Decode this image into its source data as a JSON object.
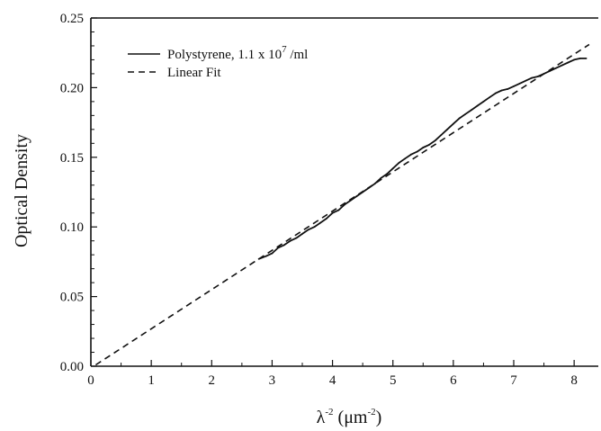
{
  "chart_data": {
    "type": "line",
    "xlabel": {
      "main": "λ",
      "sup1": "-2",
      "unit_open": "(μm",
      "sup2": "-2",
      "unit_close": ")"
    },
    "ylabel": "Optical Density",
    "xlim": [
      0,
      8.4
    ],
    "ylim": [
      0,
      0.25
    ],
    "x_ticks": [
      "0",
      "1",
      "2",
      "3",
      "4",
      "5",
      "6",
      "7",
      "8"
    ],
    "y_ticks": [
      "0.00",
      "0.05",
      "0.10",
      "0.15",
      "0.20",
      "0.25"
    ],
    "grid": false,
    "legend_position": "top-left",
    "series": [
      {
        "name": "Polystyrene, 1.1 x 10",
        "name_sup": "7",
        "name_suffix": " /ml",
        "style": "solid",
        "x": [
          2.78,
          2.9,
          3.0,
          3.1,
          3.2,
          3.3,
          3.4,
          3.5,
          3.6,
          3.7,
          3.8,
          3.9,
          4.0,
          4.1,
          4.2,
          4.3,
          4.4,
          4.5,
          4.6,
          4.7,
          4.8,
          4.9,
          5.0,
          5.1,
          5.2,
          5.3,
          5.4,
          5.5,
          5.6,
          5.7,
          5.8,
          5.9,
          6.0,
          6.1,
          6.2,
          6.3,
          6.4,
          6.5,
          6.6,
          6.7,
          6.8,
          6.9,
          7.0,
          7.1,
          7.2,
          7.3,
          7.4,
          7.5,
          7.6,
          7.7,
          7.8,
          7.9,
          8.0,
          8.1,
          8.2
        ],
        "y": [
          0.077,
          0.079,
          0.081,
          0.085,
          0.087,
          0.09,
          0.092,
          0.095,
          0.098,
          0.1,
          0.103,
          0.106,
          0.11,
          0.112,
          0.116,
          0.119,
          0.122,
          0.125,
          0.128,
          0.131,
          0.135,
          0.138,
          0.142,
          0.146,
          0.149,
          0.152,
          0.154,
          0.157,
          0.159,
          0.162,
          0.166,
          0.17,
          0.174,
          0.178,
          0.181,
          0.184,
          0.187,
          0.19,
          0.193,
          0.196,
          0.198,
          0.199,
          0.201,
          0.203,
          0.205,
          0.207,
          0.208,
          0.21,
          0.212,
          0.214,
          0.216,
          0.218,
          0.22,
          0.221,
          0.221
        ]
      },
      {
        "name": "Linear Fit",
        "style": "dashed",
        "x": [
          0.08,
          8.25
        ],
        "y": [
          0.001,
          0.231
        ]
      }
    ]
  }
}
